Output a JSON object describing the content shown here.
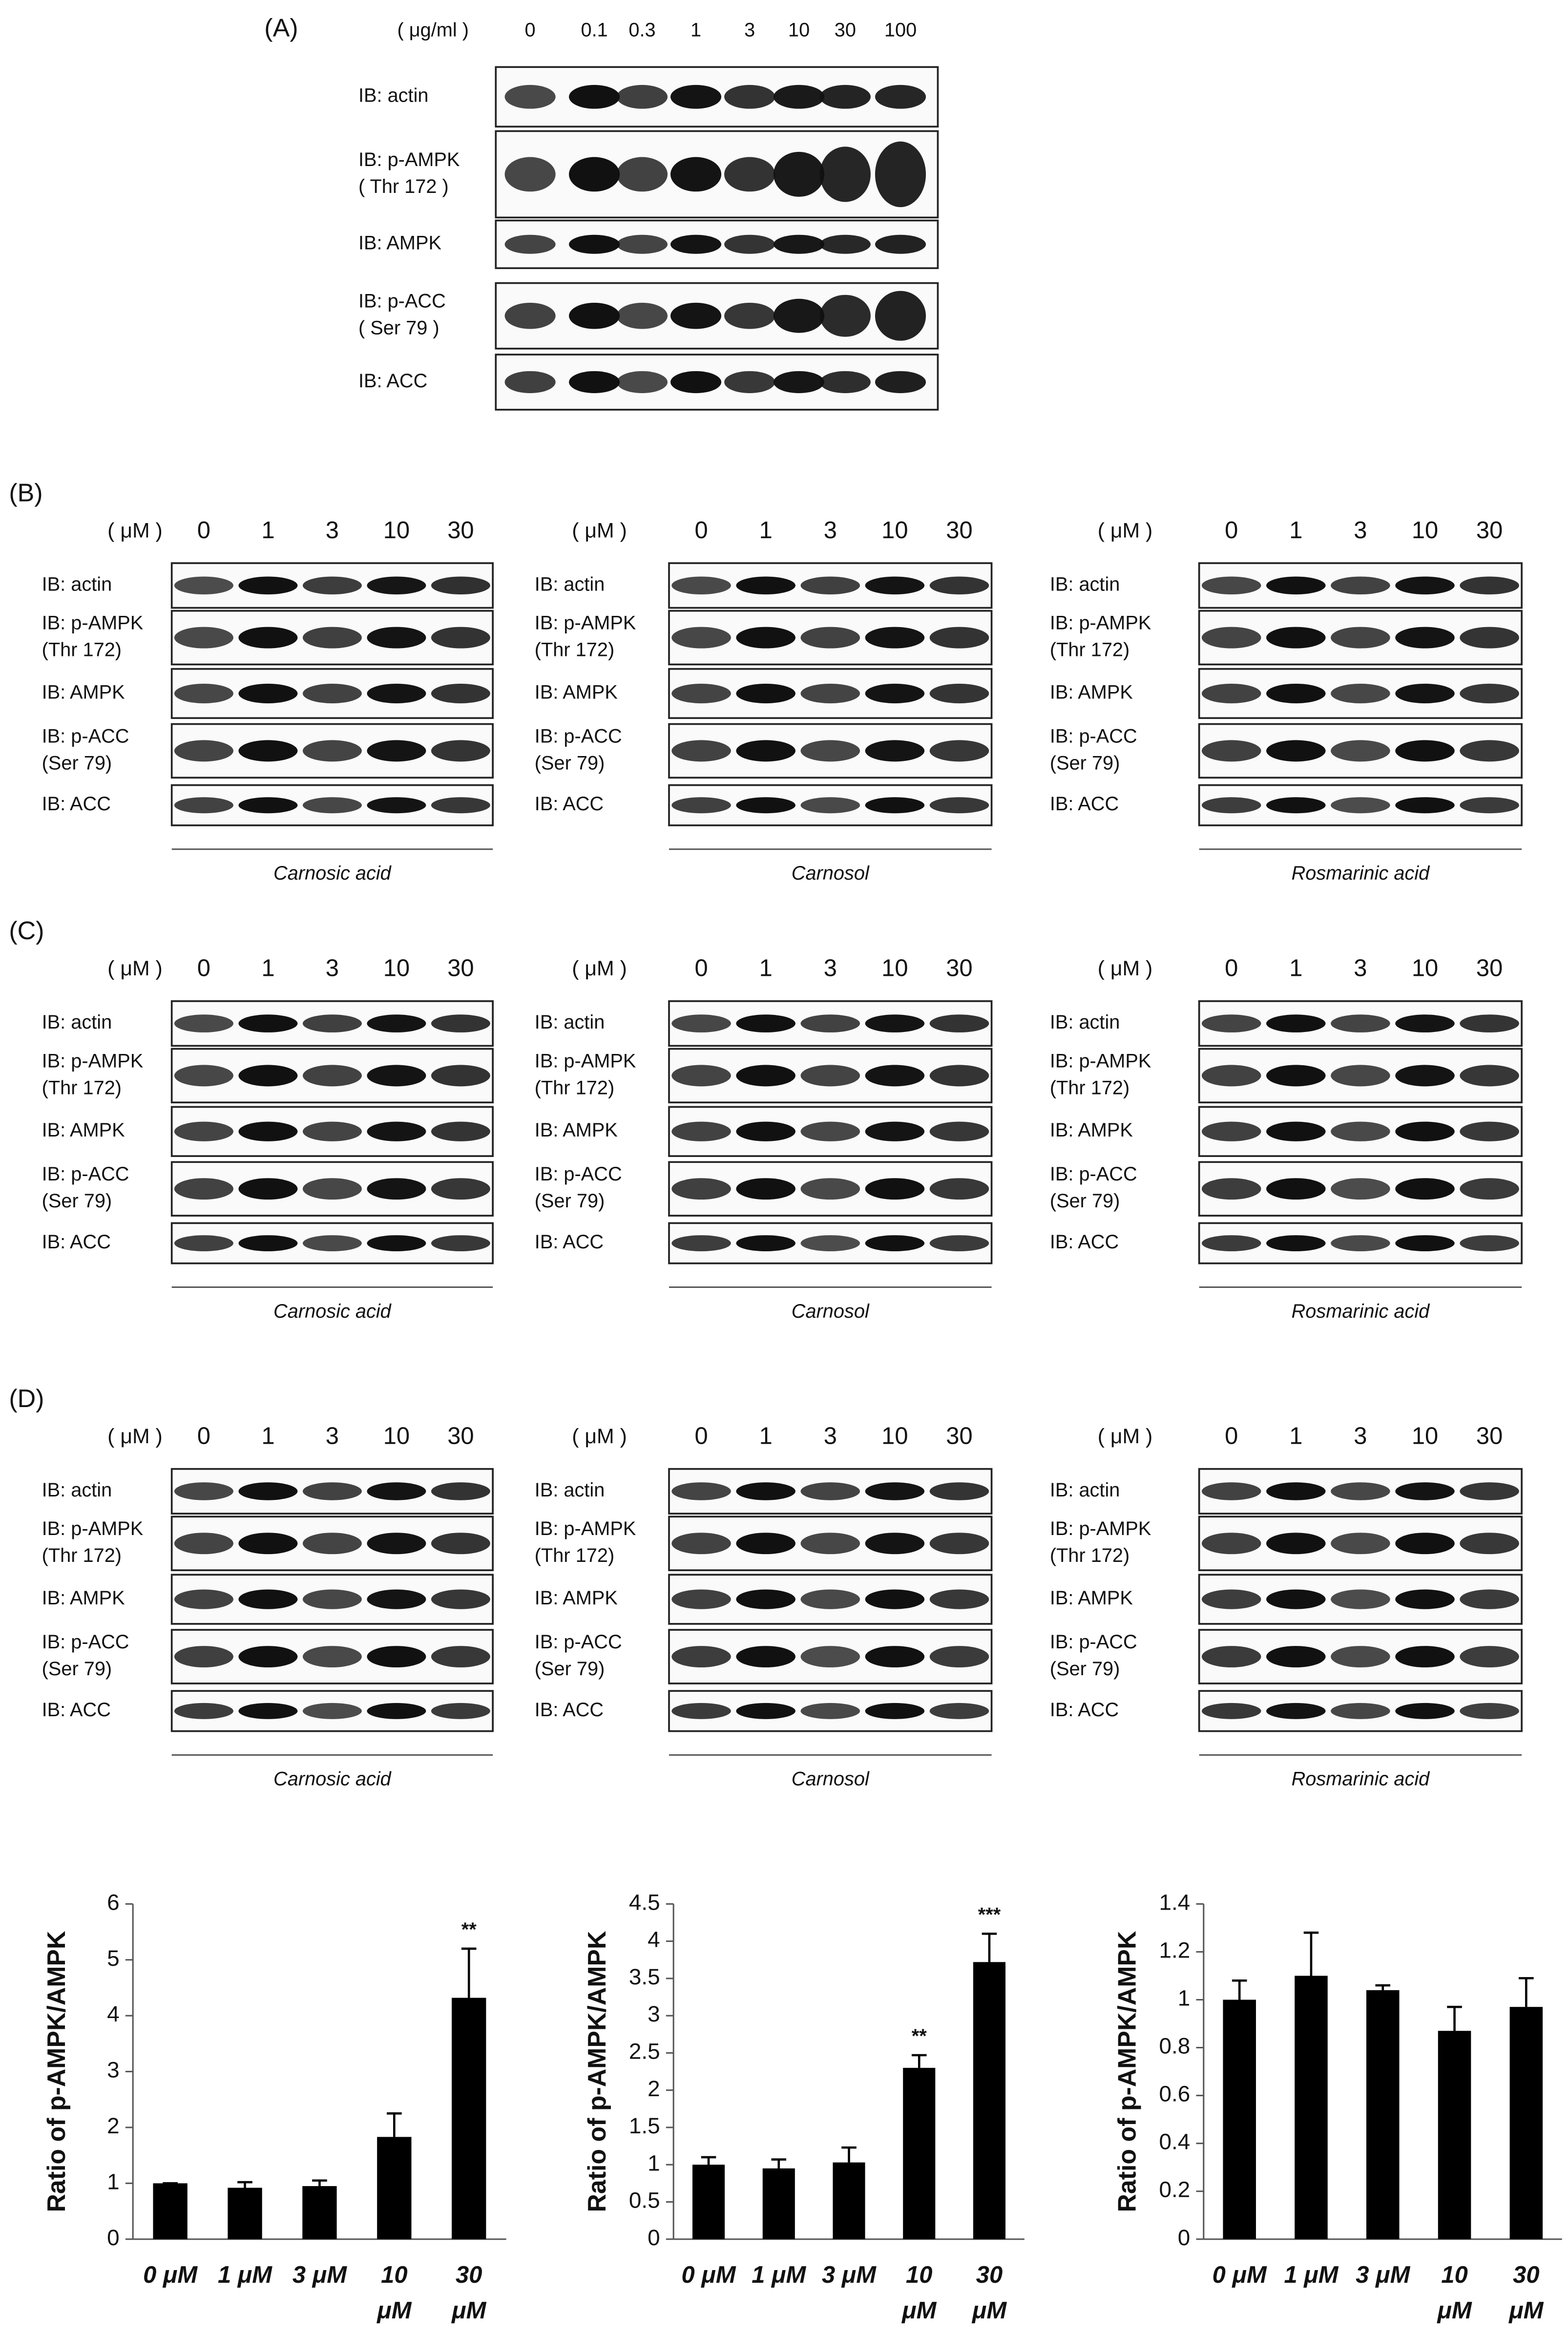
{
  "panel_a": {
    "label": "(A)",
    "unit": "( μg/ml )",
    "doses": [
      "0",
      "0.1",
      "0.3",
      "1",
      "3",
      "10",
      "30",
      "100"
    ],
    "rows": [
      [
        "IB: actin"
      ],
      [
        "IB: p-AMPK",
        "( Thr 172 )"
      ],
      [
        "IB: AMPK"
      ],
      [
        "IB: p-ACC",
        "( Ser 79 )"
      ],
      [
        "IB: ACC"
      ]
    ]
  },
  "panels": [
    {
      "label": "(B)",
      "blots": [
        {
          "unit": "( μM )",
          "doses": [
            "0",
            "1",
            "3",
            "10",
            "30"
          ],
          "rows": [
            [
              "IB: actin"
            ],
            [
              "IB: p-AMPK",
              "(Thr 172)"
            ],
            [
              "IB: AMPK"
            ],
            [
              "IB: p-ACC",
              "(Ser 79)"
            ],
            [
              "IB: ACC"
            ]
          ],
          "compound": "Carnosic acid"
        },
        {
          "unit": "( μM )",
          "doses": [
            "0",
            "1",
            "3",
            "10",
            "30"
          ],
          "rows": [
            [
              "IB: actin"
            ],
            [
              "IB: p-AMPK",
              "(Thr 172)"
            ],
            [
              "IB: AMPK"
            ],
            [
              "IB: p-ACC",
              "(Ser 79)"
            ],
            [
              "IB: ACC"
            ]
          ],
          "compound": "Carnosol"
        },
        {
          "unit": "( μM )",
          "doses": [
            "0",
            "1",
            "3",
            "10",
            "30"
          ],
          "rows": [
            [
              "IB: actin"
            ],
            [
              "IB: p-AMPK",
              "(Thr 172)"
            ],
            [
              "IB: AMPK"
            ],
            [
              "IB: p-ACC",
              "(Ser 79)"
            ],
            [
              "IB: ACC"
            ]
          ],
          "compound": "Rosmarinic acid"
        }
      ]
    },
    {
      "label": "(C)",
      "blots": [
        {
          "unit": "( μM )",
          "doses": [
            "0",
            "1",
            "3",
            "10",
            "30"
          ],
          "rows": [
            [
              "IB: actin"
            ],
            [
              "IB: p-AMPK",
              "(Thr 172)"
            ],
            [
              "IB: AMPK"
            ],
            [
              "IB: p-ACC",
              "(Ser 79)"
            ],
            [
              "IB: ACC"
            ]
          ],
          "compound": "Carnosic acid"
        },
        {
          "unit": "( μM )",
          "doses": [
            "0",
            "1",
            "3",
            "10",
            "30"
          ],
          "rows": [
            [
              "IB: actin"
            ],
            [
              "IB: p-AMPK",
              "(Thr 172)"
            ],
            [
              "IB: AMPK"
            ],
            [
              "IB: p-ACC",
              "(Ser 79)"
            ],
            [
              "IB: ACC"
            ]
          ],
          "compound": "Carnosol"
        },
        {
          "unit": "( μM )",
          "doses": [
            "0",
            "1",
            "3",
            "10",
            "30"
          ],
          "rows": [
            [
              "IB: actin"
            ],
            [
              "IB: p-AMPK",
              "(Thr 172)"
            ],
            [
              "IB: AMPK"
            ],
            [
              "IB: p-ACC",
              "(Ser 79)"
            ],
            [
              "IB: ACC"
            ]
          ],
          "compound": "Rosmarinic acid"
        }
      ]
    },
    {
      "label": "(D)",
      "blots": [
        {
          "unit": "( μM )",
          "doses": [
            "0",
            "1",
            "3",
            "10",
            "30"
          ],
          "rows": [
            [
              "IB: actin"
            ],
            [
              "IB: p-AMPK",
              "(Thr 172)"
            ],
            [
              "IB: AMPK"
            ],
            [
              "IB: p-ACC",
              "(Ser 79)"
            ],
            [
              "IB: ACC"
            ]
          ],
          "compound": "Carnosic acid"
        },
        {
          "unit": "( μM )",
          "doses": [
            "0",
            "1",
            "3",
            "10",
            "30"
          ],
          "rows": [
            [
              "IB: actin"
            ],
            [
              "IB: p-AMPK",
              "(Thr 172)"
            ],
            [
              "IB: AMPK"
            ],
            [
              "IB: p-ACC",
              "(Ser 79)"
            ],
            [
              "IB: ACC"
            ]
          ],
          "compound": "Carnosol"
        },
        {
          "unit": "( μM )",
          "doses": [
            "0",
            "1",
            "3",
            "10",
            "30"
          ],
          "rows": [
            [
              "IB: actin"
            ],
            [
              "IB: p-AMPK",
              "(Thr 172)"
            ],
            [
              "IB: AMPK"
            ],
            [
              "IB: p-ACC",
              "(Ser 79)"
            ],
            [
              "IB: ACC"
            ]
          ],
          "compound": "Rosmarinic acid"
        }
      ]
    }
  ],
  "chart_data": [
    {
      "type": "bar",
      "y_label": "Ratio of p-AMPK/AMPK",
      "color": "#000000",
      "categories": [
        [
          "0 μM"
        ],
        [
          "1 μM"
        ],
        [
          "3 μM"
        ],
        [
          "10",
          "μM"
        ],
        [
          "30",
          "μM"
        ]
      ],
      "values": [
        1.0,
        0.92,
        0.95,
        1.83,
        4.32
      ],
      "errors": [
        0,
        0.1,
        0.1,
        0.42,
        0.88
      ],
      "significance": [
        null,
        null,
        null,
        null,
        "**"
      ],
      "ylim": [
        0,
        6
      ],
      "yticks": [
        0,
        1,
        2,
        3,
        4,
        5,
        6
      ]
    },
    {
      "type": "bar",
      "y_label": "Ratio of p-AMPK/AMPK",
      "color": "#000000",
      "categories": [
        [
          "0 μM"
        ],
        [
          "1 μM"
        ],
        [
          "3 μM"
        ],
        [
          "10",
          "μM"
        ],
        [
          "30",
          "μM"
        ]
      ],
      "values": [
        1.0,
        0.95,
        1.03,
        2.3,
        3.72
      ],
      "errors": [
        0.1,
        0.12,
        0.2,
        0.17,
        0.38
      ],
      "significance": [
        null,
        null,
        null,
        "**",
        "***"
      ],
      "ylim": [
        0,
        4.5
      ],
      "yticks": [
        0,
        0.5,
        1,
        1.5,
        2,
        2.5,
        3,
        3.5,
        4,
        4.5
      ]
    },
    {
      "type": "bar",
      "y_label": "Ratio of p-AMPK/AMPK",
      "color": "#000000",
      "categories": [
        [
          "0 μM"
        ],
        [
          "1 μM"
        ],
        [
          "3 μM"
        ],
        [
          "10",
          "μM"
        ],
        [
          "30",
          "μM"
        ]
      ],
      "values": [
        1.0,
        1.1,
        1.04,
        0.87,
        0.97
      ],
      "errors": [
        0.08,
        0.18,
        0.02,
        0.1,
        0.12
      ],
      "significance": [
        null,
        null,
        null,
        null,
        null
      ],
      "ylim": [
        0,
        1.4
      ],
      "yticks": [
        0,
        0.2,
        0.4,
        0.6,
        0.8,
        1,
        1.2,
        1.4
      ]
    }
  ]
}
